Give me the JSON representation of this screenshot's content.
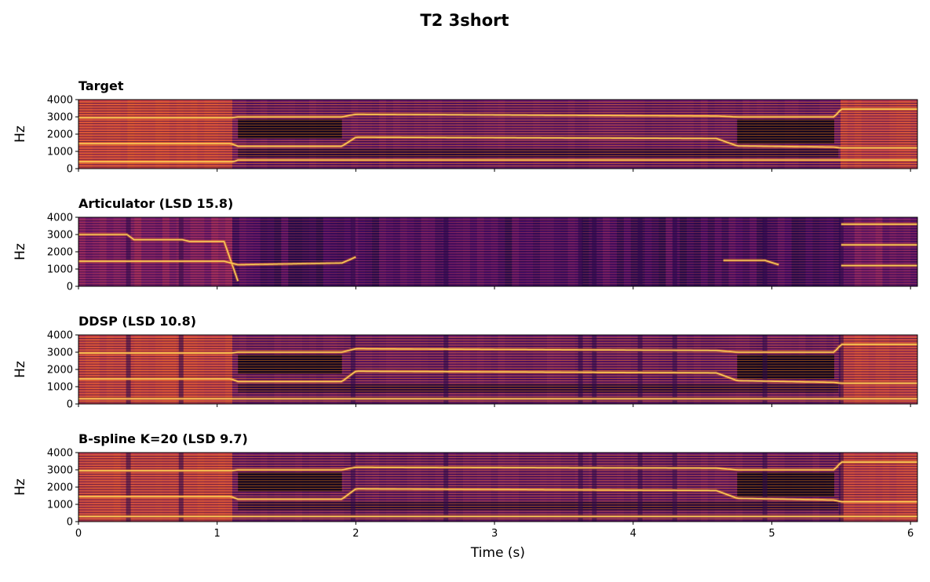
{
  "figure": {
    "title": "T2 3short"
  },
  "chart_data": [
    {
      "type": "heatmap",
      "title": "Target",
      "ylabel": "Hz",
      "xlabel": "",
      "xlim": [
        0,
        6.05
      ],
      "ylim": [
        0,
        4000
      ],
      "x_ticks": [
        "0",
        "1",
        "2",
        "3",
        "4",
        "5",
        "6"
      ],
      "y_ticks": [
        "0",
        "1000",
        "2000",
        "3000",
        "4000"
      ],
      "colormap": "inferno",
      "style": "target",
      "formants": [
        {
          "t": [
            0,
            1.1,
            1.15,
            1.9,
            2.0,
            4.6,
            4.75,
            5.45,
            5.5,
            6.05
          ],
          "f": [
            2950,
            2950,
            3000,
            3000,
            3150,
            3050,
            3000,
            3000,
            3450,
            3450
          ]
        },
        {
          "t": [
            0,
            1.1,
            1.15,
            1.9,
            2.0,
            4.6,
            4.75,
            5.45,
            5.5,
            6.05
          ],
          "f": [
            1450,
            1450,
            1300,
            1300,
            1820,
            1750,
            1320,
            1250,
            1200,
            1200
          ]
        },
        {
          "t": [
            0,
            1.12,
            1.15,
            6.05
          ],
          "f": [
            400,
            400,
            500,
            500
          ]
        }
      ]
    },
    {
      "type": "heatmap",
      "title": "Articulator (LSD 15.8)",
      "ylabel": "Hz",
      "xlabel": "",
      "xlim": [
        0,
        6.05
      ],
      "ylim": [
        0,
        4000
      ],
      "x_ticks": [
        "0",
        "1",
        "2",
        "3",
        "4",
        "5",
        "6"
      ],
      "y_ticks": [
        "0",
        "1000",
        "2000",
        "3000",
        "4000"
      ],
      "colormap": "inferno",
      "style": "articulator",
      "formants": [
        {
          "t": [
            0,
            0.35,
            0.4,
            0.75,
            0.8,
            1.05,
            1.15
          ],
          "f": [
            3000,
            3000,
            2700,
            2700,
            2600,
            2600,
            300
          ]
        },
        {
          "t": [
            0,
            1.05,
            1.15,
            1.9,
            2.0
          ],
          "f": [
            1450,
            1450,
            1250,
            1350,
            1700
          ]
        },
        {
          "t": [
            4.65,
            4.95,
            5.05
          ],
          "f": [
            1500,
            1500,
            1250
          ]
        },
        {
          "t": [
            5.5,
            6.05
          ],
          "f": [
            3600,
            3600
          ]
        },
        {
          "t": [
            5.5,
            6.05
          ],
          "f": [
            2400,
            2400
          ]
        },
        {
          "t": [
            5.5,
            6.05
          ],
          "f": [
            1200,
            1200
          ]
        }
      ]
    },
    {
      "type": "heatmap",
      "title": "DDSP (LSD 10.8)",
      "ylabel": "Hz",
      "xlabel": "",
      "xlim": [
        0,
        6.05
      ],
      "ylim": [
        0,
        4000
      ],
      "x_ticks": [
        "0",
        "1",
        "2",
        "3",
        "4",
        "5",
        "6"
      ],
      "y_ticks": [
        "0",
        "1000",
        "2000",
        "3000",
        "4000"
      ],
      "colormap": "inferno",
      "style": "ddsp",
      "formants": [
        {
          "t": [
            0,
            1.1,
            1.15,
            1.9,
            2.0,
            4.6,
            4.75,
            5.45,
            5.5,
            6.05
          ],
          "f": [
            2950,
            2950,
            3000,
            3000,
            3200,
            3100,
            3000,
            3000,
            3450,
            3450
          ]
        },
        {
          "t": [
            0,
            1.1,
            1.15,
            1.9,
            2.0,
            4.6,
            4.75,
            5.45,
            5.5,
            6.05
          ],
          "f": [
            1450,
            1450,
            1300,
            1300,
            1900,
            1800,
            1350,
            1250,
            1200,
            1200
          ]
        },
        {
          "t": [
            0,
            6.05
          ],
          "f": [
            300,
            300
          ]
        }
      ]
    },
    {
      "type": "heatmap",
      "title": "B-spline K=20 (LSD 9.7)",
      "ylabel": "Hz",
      "xlabel": "Time (s)",
      "xlim": [
        0,
        6.05
      ],
      "ylim": [
        0,
        4000
      ],
      "x_ticks": [
        "0",
        "1",
        "2",
        "3",
        "4",
        "5",
        "6"
      ],
      "y_ticks": [
        "0",
        "1000",
        "2000",
        "3000",
        "4000"
      ],
      "colormap": "inferno",
      "style": "bspline",
      "formants": [
        {
          "t": [
            0,
            1.1,
            1.15,
            1.9,
            2.0,
            4.6,
            4.75,
            5.45,
            5.5,
            6.05
          ],
          "f": [
            2950,
            2950,
            3000,
            3000,
            3150,
            3100,
            3000,
            3000,
            3450,
            3450
          ]
        },
        {
          "t": [
            0,
            1.1,
            1.15,
            1.9,
            2.0,
            4.6,
            4.75,
            5.45,
            5.5,
            6.05
          ],
          "f": [
            1450,
            1450,
            1300,
            1300,
            1900,
            1800,
            1350,
            1250,
            1150,
            1150
          ]
        },
        {
          "t": [
            0,
            6.05
          ],
          "f": [
            300,
            300
          ]
        }
      ]
    }
  ]
}
